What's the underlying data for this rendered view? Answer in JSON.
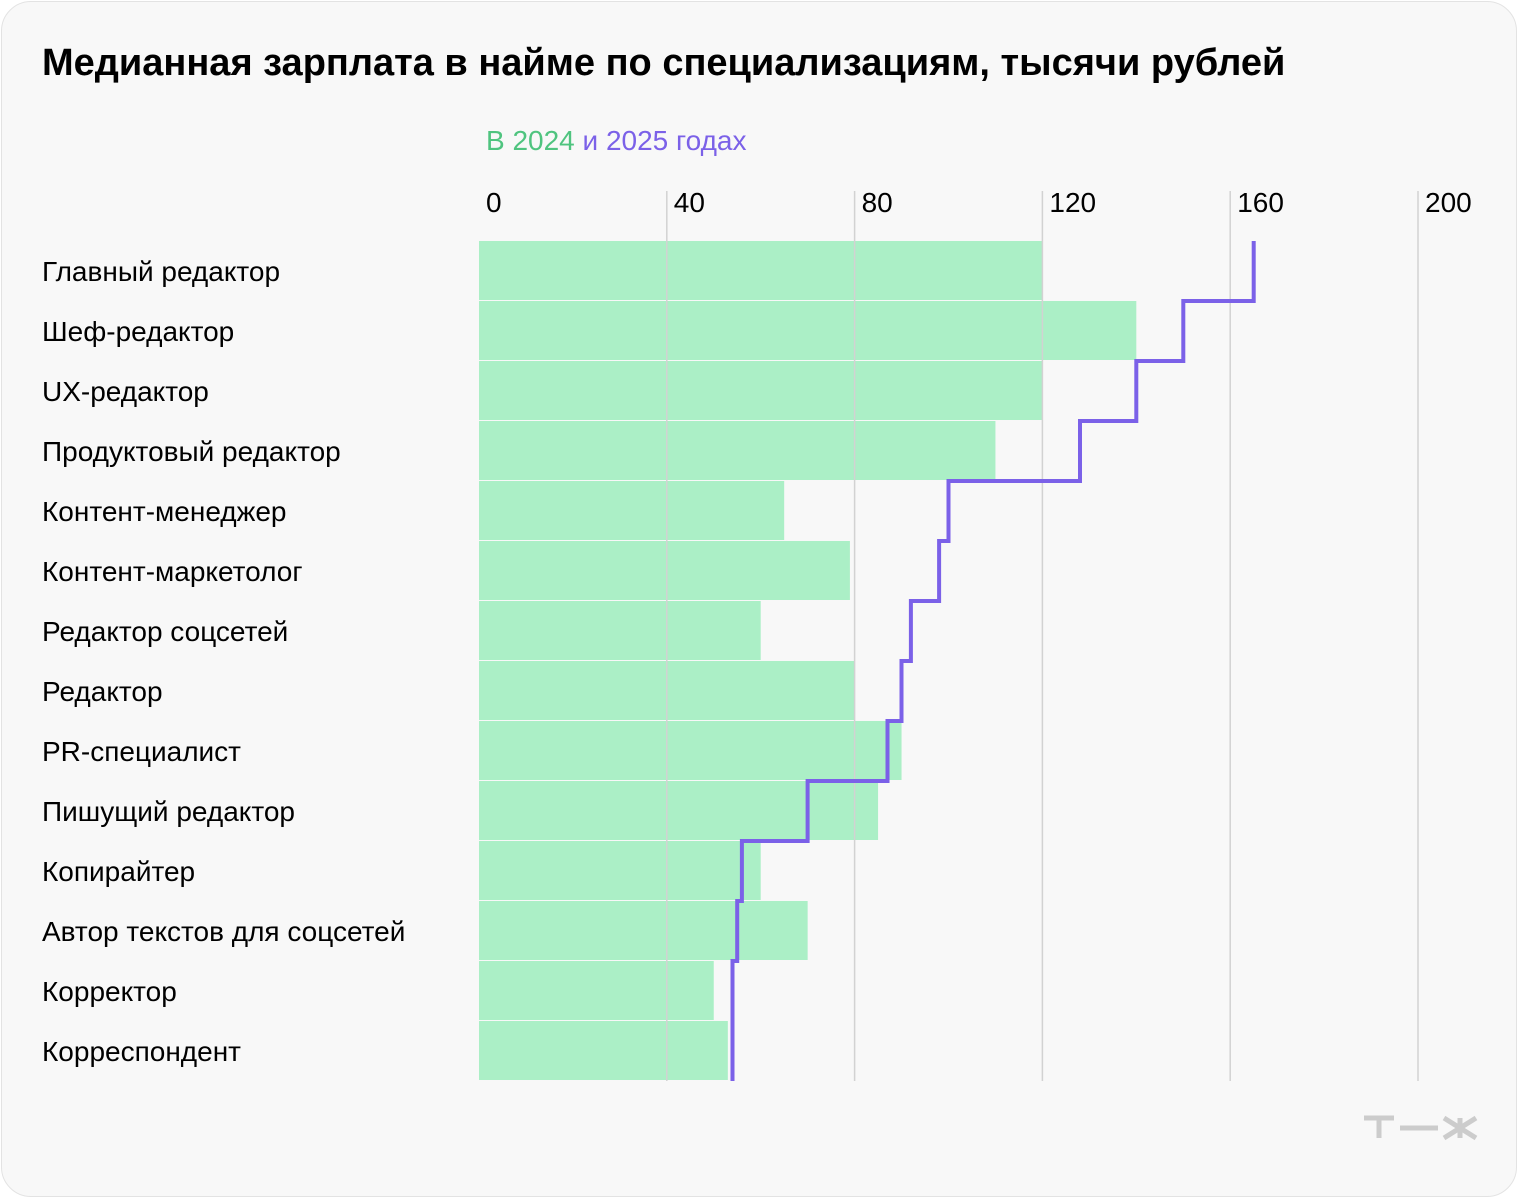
{
  "title": "Медианная зарплата в найме по специализациям, тысячи рублей",
  "legend": {
    "part1": "В 2024",
    "part2": " и 2025 годах"
  },
  "colors": {
    "bar_2024": "#abefc6",
    "line_2025": "#7b61e8",
    "legend_2024": "#4fc47f",
    "legend_2025": "#7b61e8",
    "grid": "#d2d2d2",
    "logo": "#cccccc"
  },
  "logo": "т—ж",
  "chart_data": {
    "type": "bar",
    "orientation": "horizontal",
    "title": "Медианная зарплата в найме по специализациям, тысячи рублей",
    "subtitle": "В 2024 и 2025 годах",
    "xlim": [
      0,
      200
    ],
    "xticks": [
      0,
      40,
      80,
      120,
      160,
      200
    ],
    "grid": true,
    "categories": [
      "Главный редактор",
      "Шеф-редактор",
      "UX-редактор",
      "Продуктовый редактор",
      "Контент-менеджер",
      "Контент-маркетолог",
      "Редактор соцсетей",
      "Редактор",
      "PR-специалист",
      "Пишущий редактор",
      "Копирайтер",
      "Автор текстов для соцсетей",
      "Корректор",
      "Корреспондент"
    ],
    "series": [
      {
        "name": "В 2024",
        "style": "bar",
        "values": [
          120,
          140,
          120,
          110,
          65,
          79,
          60,
          80,
          90,
          85,
          60,
          70,
          50,
          53
        ]
      },
      {
        "name": "2025",
        "style": "step-line",
        "values": [
          165,
          150,
          140,
          128,
          100,
          98,
          92,
          90,
          87,
          70,
          56,
          55,
          54,
          54
        ]
      }
    ]
  }
}
